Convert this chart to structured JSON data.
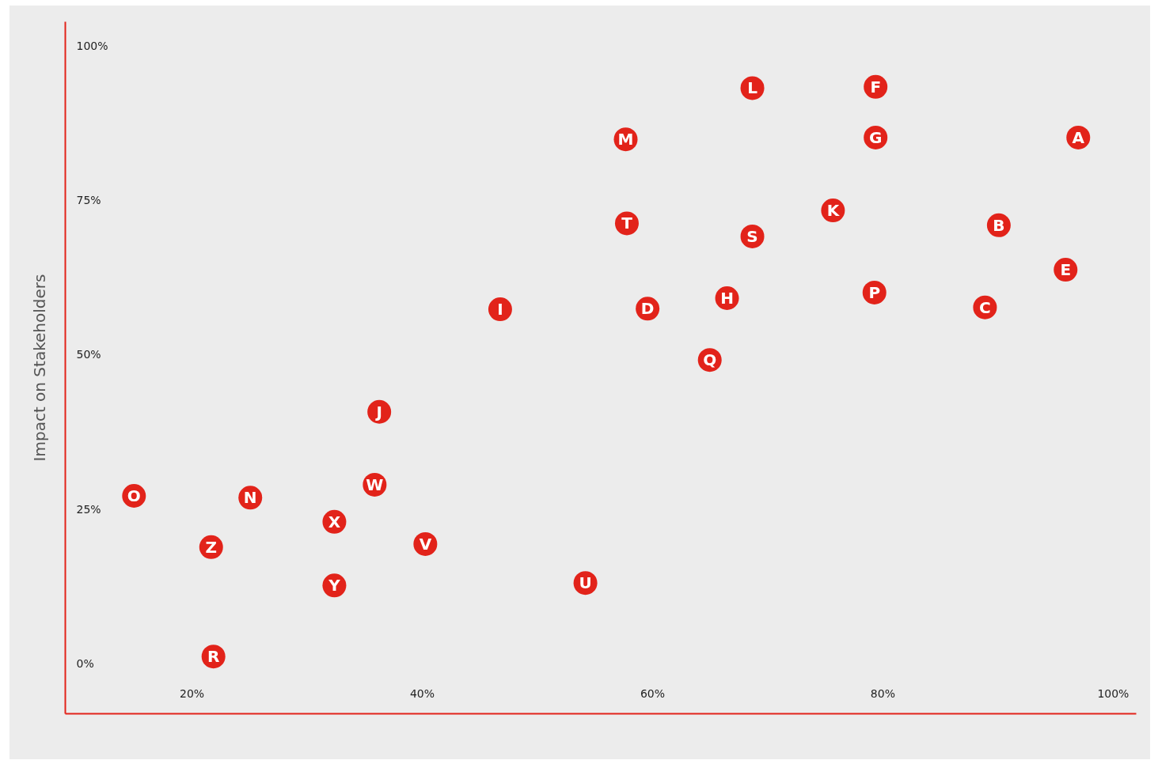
{
  "chart_data": {
    "type": "scatter",
    "ylabel": "Impact on Stakeholders",
    "xlim": [
      9,
      102
    ],
    "ylim": [
      -8,
      104
    ],
    "xticks": [
      {
        "value": 20,
        "label": "20%"
      },
      {
        "value": 40,
        "label": "40%"
      },
      {
        "value": 60,
        "label": "60%"
      },
      {
        "value": 80,
        "label": "80%"
      },
      {
        "value": 100,
        "label": "100%"
      }
    ],
    "yticks": [
      {
        "value": 0,
        "label": "0%"
      },
      {
        "value": 25,
        "label": "25%"
      },
      {
        "value": 50,
        "label": "50%"
      },
      {
        "value": 75,
        "label": "75%"
      },
      {
        "value": 100,
        "label": "100%"
      }
    ],
    "grid": false,
    "marker": "circle",
    "series": [
      {
        "color": "#e2231a",
        "x": [
          97.0,
          90.1,
          88.9,
          59.6,
          95.9,
          79.4,
          79.4,
          66.5,
          46.8,
          36.3,
          75.7,
          68.7,
          57.7,
          25.1,
          15.0,
          79.3,
          65.0,
          21.9,
          68.7,
          57.8,
          54.2,
          40.3,
          35.9,
          32.4,
          32.4,
          21.7
        ],
        "values": [
          85.2,
          71.0,
          57.7,
          57.5,
          63.8,
          93.4,
          85.2,
          59.2,
          57.4,
          40.8,
          73.4,
          93.2,
          84.9,
          26.9,
          27.2,
          60.1,
          49.2,
          1.2,
          69.2,
          71.3,
          13.1,
          19.4,
          29.0,
          23.0,
          12.7,
          18.9
        ],
        "value_labels": [
          "A",
          "B",
          "C",
          "D",
          "E",
          "F",
          "G",
          "H",
          "I",
          "J",
          "K",
          "L",
          "M",
          "N",
          "O",
          "P",
          "Q",
          "R",
          "S",
          "T",
          "U",
          "V",
          "W",
          "X",
          "Y",
          "Z"
        ]
      }
    ]
  }
}
